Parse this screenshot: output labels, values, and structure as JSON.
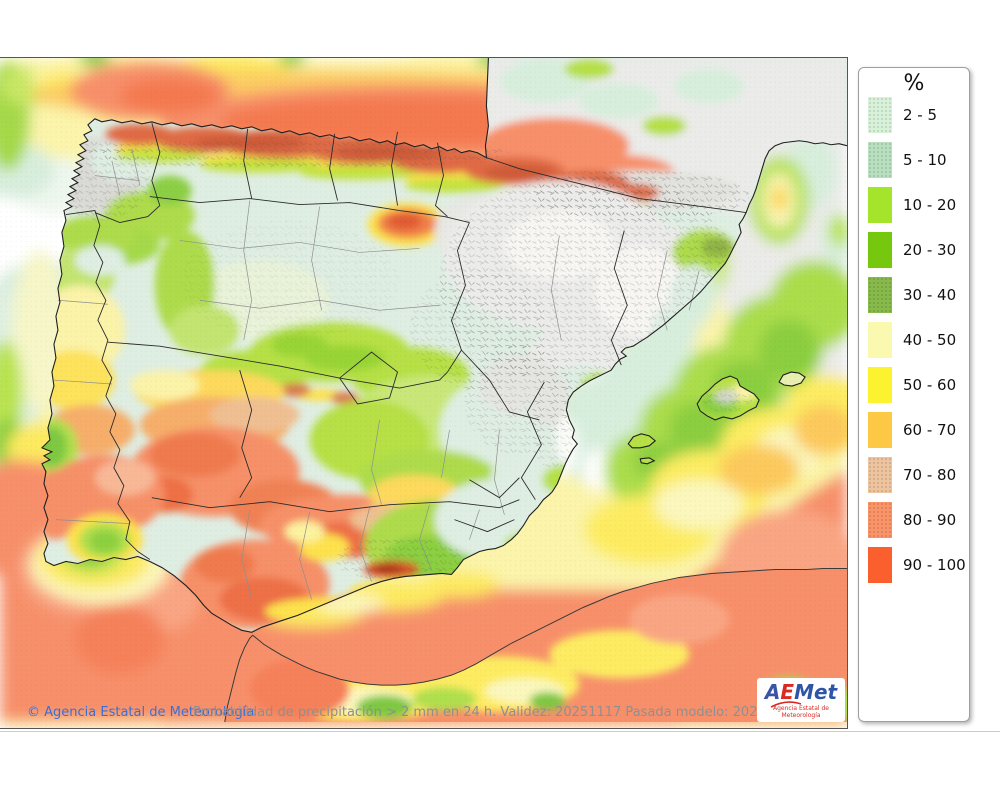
{
  "legend": {
    "title": "%",
    "items": [
      {
        "label": "2 - 5",
        "color": "#d8f2da",
        "textured": true
      },
      {
        "label": "5 - 10",
        "color": "#b7dfc0",
        "textured": true
      },
      {
        "label": "10 - 20",
        "color": "#a4e52c",
        "textured": false
      },
      {
        "label": "20 - 30",
        "color": "#76c80e",
        "textured": false
      },
      {
        "label": "30 - 40",
        "color": "#87ba4a",
        "textured": true
      },
      {
        "label": "40 - 50",
        "color": "#fbf8af",
        "textured": false
      },
      {
        "label": "50 - 60",
        "color": "#fdf230",
        "textured": false
      },
      {
        "label": "60 - 70",
        "color": "#fdc844",
        "textured": false
      },
      {
        "label": "70 - 80",
        "color": "#edc49e",
        "textured": true
      },
      {
        "label": "80 - 90",
        "color": "#fa9468",
        "textured": true
      },
      {
        "label": "90 - 100",
        "color": "#fa5f2d",
        "textured": false
      }
    ]
  },
  "footer": {
    "copyright": "© Agencia Estatal de Meteorología",
    "description": "Probabilidad de precipitación > 2 mm en 24 h. Validez: 20251117 Pasada modelo: 2025111600"
  },
  "logo": {
    "a": "A",
    "e": "E",
    "met": "Met",
    "subtitle": "Agencia Estatal de Meteorología"
  },
  "colors": {
    "copyright": "#3a6fd8",
    "logo_a": "#3a55a4",
    "logo_e": "#d92b23",
    "logo_met": "#2f55a8",
    "logo_subtitle": "#d92b23"
  }
}
